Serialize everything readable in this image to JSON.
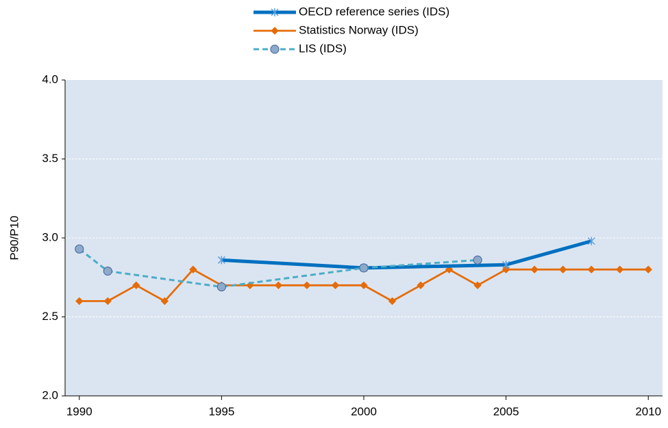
{
  "chart_data": {
    "type": "line",
    "y_label": "P90/P10",
    "xlim": [
      1989.5,
      2010.5
    ],
    "xticks": [
      1990,
      1995,
      2000,
      2005,
      2010
    ],
    "ylim": [
      2.0,
      4.0
    ],
    "yticks": [
      {
        "value": 2.0,
        "label": "2.0"
      },
      {
        "value": 2.5,
        "label": "2.5"
      },
      {
        "value": 3.0,
        "label": "3.0"
      },
      {
        "value": 3.5,
        "label": "3.5"
      },
      {
        "value": 4.0,
        "label": "4.0"
      }
    ],
    "grid": true,
    "series": [
      {
        "name": "OECD reference series (IDS)",
        "color": "#0070c0",
        "marker": "star",
        "dashed": false,
        "x": [
          1995,
          2000,
          2005,
          2008
        ],
        "values": [
          2.86,
          2.81,
          2.83,
          2.98
        ]
      },
      {
        "name": "Statistics Norway (IDS)",
        "color": "#e46c0a",
        "marker": "diamond",
        "dashed": false,
        "x": [
          1990,
          1991,
          1992,
          1993,
          1994,
          1995,
          1996,
          1997,
          1998,
          1999,
          2000,
          2001,
          2002,
          2003,
          2004,
          2005,
          2006,
          2007,
          2008,
          2009,
          2010
        ],
        "values": [
          2.6,
          2.6,
          2.7,
          2.6,
          2.8,
          2.7,
          2.7,
          2.7,
          2.7,
          2.7,
          2.7,
          2.6,
          2.7,
          2.8,
          2.7,
          2.8,
          2.8,
          2.8,
          2.8,
          2.8,
          2.8
        ]
      },
      {
        "name": "LIS (IDS)",
        "color": "#4bacc6",
        "marker": "circle",
        "dashed": true,
        "x": [
          1990,
          1991,
          1995,
          2000,
          2004
        ],
        "values": [
          2.93,
          2.79,
          2.69,
          2.81,
          2.86
        ]
      }
    ]
  }
}
